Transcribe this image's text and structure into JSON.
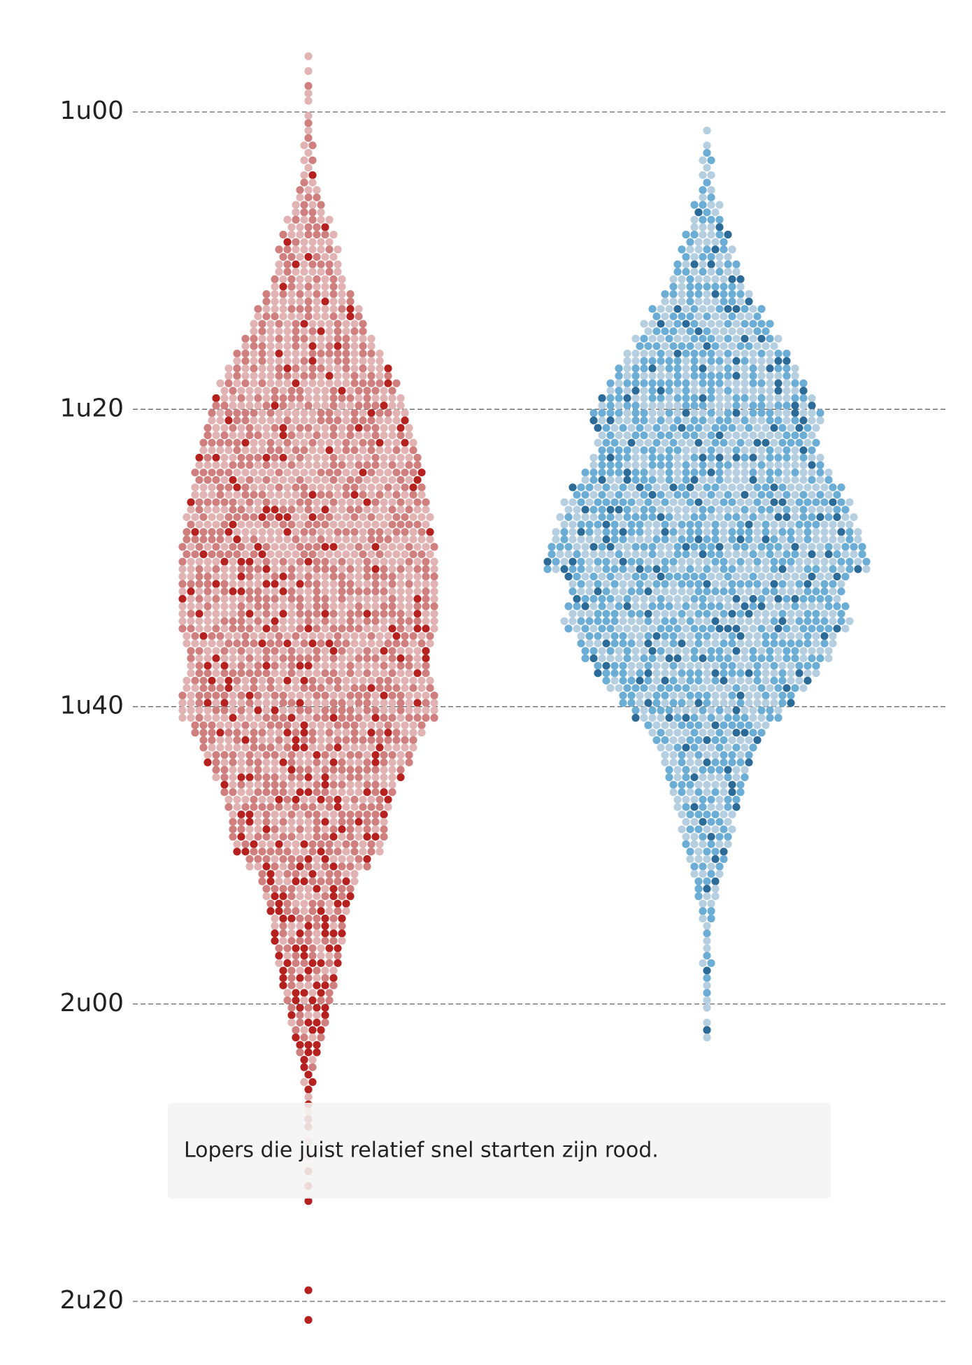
{
  "chart_data": {
    "type": "beeswarm",
    "ylim": [
      52.47,
      144.28
    ],
    "yticks": [
      {
        "value": 60,
        "label": "1u00"
      },
      {
        "value": 80,
        "label": "1u20"
      },
      {
        "value": 100,
        "label": "1u40"
      },
      {
        "value": 120,
        "label": "2u00"
      },
      {
        "value": 140,
        "label": "2u20"
      }
    ],
    "grid": true,
    "annotation": "Lopers die juist relatief snel starten zijn rood.",
    "bins": [
      55,
      56,
      57,
      58,
      59,
      60,
      61,
      62,
      63,
      64,
      65,
      66,
      67,
      68,
      69,
      70,
      71,
      72,
      73,
      74,
      75,
      76,
      77,
      78,
      79,
      80,
      81,
      82,
      83,
      84,
      85,
      86,
      87,
      88,
      89,
      90,
      91,
      92,
      93,
      94,
      95,
      96,
      97,
      98,
      99,
      100,
      101,
      102,
      103,
      104,
      105,
      106,
      107,
      108,
      109,
      110,
      111,
      112,
      113,
      114,
      115,
      116,
      117,
      118,
      119,
      120,
      121,
      122,
      123,
      124,
      125,
      126,
      127,
      128,
      129,
      130,
      131,
      132,
      133,
      134,
      135,
      136,
      137,
      138,
      139,
      140,
      141,
      142,
      143
    ],
    "groups": [
      {
        "series": [
          {
            "color": "#e2b3b3",
            "values": [
              0,
              1,
              1,
              1,
              1,
              1,
              1,
              2,
              2,
              2,
              3,
              4,
              6,
              7,
              8,
              9,
              10,
              12,
              14,
              15,
              17,
              19,
              21,
              23,
              24,
              25,
              26,
              27,
              28,
              28,
              29,
              29,
              30,
              30,
              30,
              31,
              30,
              30,
              30,
              30,
              29,
              27,
              27,
              28,
              29,
              29,
              25,
              23,
              21,
              19,
              17,
              16,
              14,
              14,
              13,
              10,
              8,
              7,
              6,
              5,
              5,
              4,
              4,
              3,
              3,
              2,
              2,
              1,
              1,
              0,
              1,
              1,
              1,
              0,
              1,
              1,
              0,
              0,
              0,
              0,
              0,
              0,
              0,
              0,
              0,
              0,
              0,
              0
            ]
          },
          {
            "color": "#d07f7f",
            "values": [
              0,
              0,
              0,
              1,
              0,
              1,
              1,
              1,
              1,
              1,
              3,
              4,
              4,
              5,
              6,
              6,
              7,
              9,
              10,
              11,
              13,
              15,
              16,
              17,
              19,
              20,
              20,
              21,
              22,
              23,
              23,
              24,
              24,
              25,
              25,
              25,
              26,
              26,
              26,
              26,
              25,
              25,
              25,
              26,
              27,
              27,
              25,
              23,
              23,
              21,
              19,
              18,
              18,
              18,
              17,
              14,
              10,
              9,
              8,
              7,
              7,
              6,
              5,
              5,
              4,
              3,
              3,
              2,
              1,
              1,
              0,
              0,
              0,
              0,
              0,
              0,
              0,
              0,
              0,
              0,
              0,
              0,
              0,
              0,
              0,
              0,
              0,
              0
            ]
          },
          {
            "color": "#b5211f",
            "values": [
              0,
              0,
              0,
              0,
              0,
              0,
              0,
              0,
              0,
              1,
              0,
              0,
              1,
              1,
              1,
              1,
              1,
              1,
              2,
              2,
              2,
              2,
              3,
              3,
              3,
              3,
              4,
              4,
              4,
              4,
              4,
              5,
              5,
              5,
              6,
              6,
              6,
              6,
              6,
              6,
              6,
              6,
              6,
              6,
              6,
              6,
              6,
              6,
              6,
              6,
              6,
              6,
              6,
              6,
              6,
              6,
              6,
              6,
              6,
              6,
              6,
              6,
              6,
              6,
              5,
              5,
              4,
              4,
              3,
              2,
              2,
              1,
              1,
              1,
              0,
              0,
              1,
              1,
              1,
              0,
              0,
              0,
              0,
              0,
              1,
              0,
              1,
              0
            ]
          }
        ]
      },
      {
        "series": [
          {
            "color": "#b5cfe0",
            "values": [
              0,
              0,
              0,
              0,
              0,
              0,
              1,
              1,
              2,
              2,
              2,
              3,
              4,
              5,
              6,
              7,
              8,
              10,
              12,
              14,
              16,
              18,
              20,
              21,
              23,
              25,
              24,
              24,
              25,
              27,
              29,
              31,
              32,
              33,
              34,
              35,
              30,
              29,
              30,
              31,
              28,
              27,
              24,
              22,
              19,
              16,
              13,
              11,
              10,
              9,
              8,
              7,
              6,
              6,
              5,
              4,
              3,
              3,
              2,
              2,
              1,
              1,
              1,
              1,
              1,
              1,
              1,
              1,
              0,
              0,
              0,
              0,
              0,
              0,
              0,
              0,
              0,
              0,
              0,
              0,
              0,
              0,
              0,
              0,
              0,
              0,
              0,
              0
            ]
          },
          {
            "color": "#6badd5",
            "values": [
              0,
              0,
              0,
              0,
              0,
              0,
              0,
              1,
              1,
              1,
              2,
              3,
              3,
              5,
              6,
              7,
              8,
              10,
              12,
              14,
              16,
              18,
              20,
              22,
              24,
              25,
              24,
              24,
              25,
              27,
              29,
              31,
              32,
              33,
              34,
              35,
              30,
              29,
              30,
              31,
              28,
              27,
              24,
              22,
              19,
              16,
              13,
              11,
              10,
              9,
              8,
              7,
              6,
              6,
              5,
              4,
              3,
              2,
              2,
              1,
              1,
              1,
              1,
              1,
              1,
              0,
              0,
              0,
              0,
              0,
              0,
              0,
              0,
              0,
              0,
              0,
              0,
              0,
              0,
              0,
              0,
              0,
              0,
              0,
              0,
              0,
              0,
              0
            ]
          },
          {
            "color": "#2c6a98",
            "values": [
              0,
              0,
              0,
              0,
              0,
              0,
              0,
              0,
              0,
              0,
              0,
              1,
              1,
              1,
              1,
              2,
              2,
              2,
              3,
              3,
              3,
              4,
              4,
              5,
              5,
              6,
              5,
              5,
              6,
              6,
              7,
              7,
              7,
              8,
              8,
              8,
              7,
              7,
              7,
              7,
              6,
              6,
              6,
              5,
              4,
              4,
              3,
              3,
              2,
              2,
              2,
              2,
              1,
              1,
              1,
              1,
              1,
              1,
              0,
              0,
              0,
              0,
              1,
              0,
              0,
              0,
              1,
              0,
              0,
              0,
              0,
              0,
              0,
              0,
              0,
              0,
              0,
              0,
              0,
              0,
              0,
              0,
              0,
              0,
              0,
              0,
              0,
              0
            ]
          }
        ]
      }
    ]
  }
}
